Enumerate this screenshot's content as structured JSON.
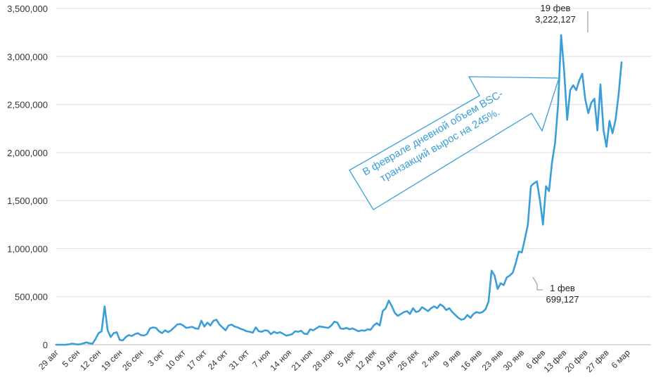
{
  "chart_data": {
    "type": "line",
    "title": "",
    "xlabel": "",
    "ylabel": "",
    "ylim": [
      0,
      3500000
    ],
    "y_ticks": [
      "0",
      "500,000",
      "1,000,000",
      "1,500,000",
      "2,000,000",
      "2,500,000",
      "3,000,000",
      "3,500,000"
    ],
    "y_tick_values": [
      0,
      500000,
      1000000,
      1500000,
      2000000,
      2500000,
      3000000,
      3500000
    ],
    "x_ticks": [
      "29 авг",
      "5 сен",
      "12 сен",
      "19 сен",
      "26 сен",
      "3 окт",
      "10 окт",
      "17 окт",
      "24 окт",
      "31 окт",
      "7 ноя",
      "14 ноя",
      "21 ноя",
      "28 ноя",
      "5 дек",
      "12 дек",
      "19 дек",
      "26 дек",
      "2 янв",
      "9 янв",
      "16 янв",
      "23 янв",
      "30 янв",
      "6 фев",
      "13 фев",
      "20 фев",
      "27 фев",
      "6 мар"
    ],
    "x_start": "2020-08-29",
    "grid": true,
    "line_color": "#3a9fd8",
    "series": [
      {
        "values": [
          0,
          0,
          0,
          0,
          3000,
          10000,
          8000,
          2000,
          5000,
          15000,
          25000,
          15000,
          10000,
          60000,
          120000,
          140000,
          400000,
          150000,
          80000,
          120000,
          130000,
          50000,
          45000,
          80000,
          100000,
          90000,
          110000,
          120000,
          100000,
          95000,
          110000,
          170000,
          180000,
          175000,
          140000,
          120000,
          150000,
          130000,
          150000,
          180000,
          210000,
          215000,
          200000,
          175000,
          180000,
          185000,
          170000,
          165000,
          250000,
          190000,
          230000,
          200000,
          250000,
          260000,
          210000,
          180000,
          150000,
          200000,
          210000,
          190000,
          180000,
          165000,
          155000,
          140000,
          135000,
          125000,
          180000,
          140000,
          135000,
          150000,
          145000,
          110000,
          135000,
          120000,
          130000,
          115000,
          95000,
          100000,
          110000,
          140000,
          135000,
          145000,
          115000,
          110000,
          160000,
          150000,
          170000,
          190000,
          185000,
          180000,
          175000,
          200000,
          240000,
          230000,
          170000,
          165000,
          175000,
          160000,
          170000,
          155000,
          140000,
          150000,
          145000,
          160000,
          155000,
          200000,
          225000,
          200000,
          350000,
          380000,
          460000,
          400000,
          330000,
          300000,
          320000,
          340000,
          350000,
          320000,
          380000,
          340000,
          350000,
          390000,
          370000,
          350000,
          380000,
          400000,
          380000,
          420000,
          400000,
          360000,
          380000,
          340000,
          310000,
          280000,
          260000,
          270000,
          310000,
          280000,
          320000,
          340000,
          330000,
          340000,
          370000,
          450000,
          770000,
          720000,
          580000,
          640000,
          620000,
          699127,
          720000,
          750000,
          850000,
          970000,
          960000,
          1100000,
          1250000,
          1650000,
          1680000,
          1700000,
          1500000,
          1250000,
          1650000,
          1600000,
          1900000,
          2100000,
          2500000,
          3222127,
          2850000,
          2340000,
          2650000,
          2700000,
          2650000,
          2750000,
          2820000,
          2550000,
          2410000,
          2520000,
          2560000,
          2230000,
          2710000,
          2240000,
          2060000,
          2330000,
          2200000,
          2340000,
          2600000,
          2940000
        ]
      }
    ],
    "annotations": [
      {
        "label": "19 фев",
        "value_text": "3,222,127"
      },
      {
        "label": "1 фев",
        "value_text": "699,127"
      }
    ],
    "callout_text": [
      "В феврале дневной объем BSC-",
      "транзакций вырос на 245%."
    ]
  }
}
